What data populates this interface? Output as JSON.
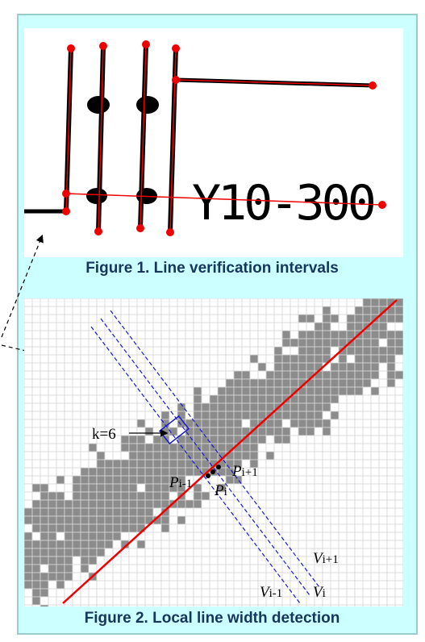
{
  "figure1": {
    "caption": "Figure 1. Line verification intervals",
    "image_text": "Y10-300"
  },
  "figure2": {
    "caption": "Figure 2. Local line width detection",
    "k_label": "k=6",
    "p_prev": {
      "base": "P",
      "sub": "i-1"
    },
    "p_cur": {
      "base": "P",
      "sub": "i"
    },
    "p_next": {
      "base": "P",
      "sub": "i+1"
    },
    "v_next": {
      "base": "V",
      "sub": "i+1"
    },
    "v_prev": {
      "base": "V",
      "sub": "i-1"
    },
    "v_cur": {
      "base": "V",
      "sub": "i"
    }
  }
}
